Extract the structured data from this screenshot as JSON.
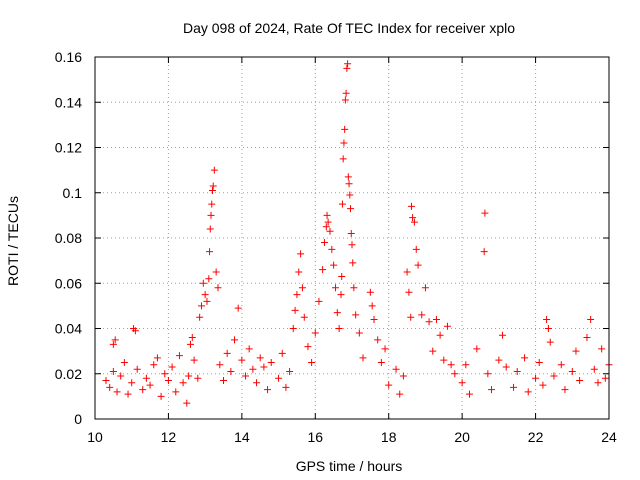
{
  "chart_data": {
    "type": "scatter",
    "title": "Day 098 of 2024, Rate Of TEC Index for receiver xplo",
    "xlabel": "GPS time / hours",
    "ylabel": "ROTI / TECUs",
    "xlim": [
      10,
      24
    ],
    "ylim": [
      0,
      0.16
    ],
    "x_ticks": [
      10,
      12,
      14,
      16,
      18,
      20,
      22,
      24
    ],
    "y_ticks": [
      0,
      0.02,
      0.04,
      0.06,
      0.08,
      0.1,
      0.12,
      0.14,
      0.16
    ],
    "x_tick_labels": [
      "10",
      "12",
      "14",
      "16",
      "18",
      "20",
      "22",
      "24"
    ],
    "y_tick_labels": [
      "0",
      "0.02",
      "0.04",
      "0.06",
      "0.08",
      "0.1",
      "0.12",
      "0.14",
      "0.16"
    ],
    "grid": true,
    "marker": "+",
    "series": [
      {
        "name": "ROTI",
        "color": "#ff0000",
        "points": [
          [
            10.3,
            0.017
          ],
          [
            10.4,
            0.014
          ],
          [
            10.5,
            0.021
          ],
          [
            10.5,
            0.033
          ],
          [
            10.55,
            0.035
          ],
          [
            10.6,
            0.012
          ],
          [
            10.7,
            0.019
          ],
          [
            10.8,
            0.025
          ],
          [
            10.9,
            0.011
          ],
          [
            11.0,
            0.016
          ],
          [
            11.05,
            0.04
          ],
          [
            11.1,
            0.039
          ],
          [
            11.15,
            0.022
          ],
          [
            11.3,
            0.013
          ],
          [
            11.4,
            0.018
          ],
          [
            11.5,
            0.015
          ],
          [
            11.6,
            0.024
          ],
          [
            11.7,
            0.027
          ],
          [
            11.8,
            0.01
          ],
          [
            11.9,
            0.02
          ],
          [
            12.0,
            0.017
          ],
          [
            12.1,
            0.023
          ],
          [
            12.2,
            0.012
          ],
          [
            12.3,
            0.028
          ],
          [
            12.4,
            0.016
          ],
          [
            12.5,
            0.007
          ],
          [
            12.55,
            0.019
          ],
          [
            12.6,
            0.033
          ],
          [
            12.65,
            0.036
          ],
          [
            12.7,
            0.026
          ],
          [
            12.8,
            0.018
          ],
          [
            12.85,
            0.045
          ],
          [
            12.9,
            0.05
          ],
          [
            12.95,
            0.06
          ],
          [
            13.0,
            0.055
          ],
          [
            13.05,
            0.052
          ],
          [
            13.1,
            0.062
          ],
          [
            13.12,
            0.074
          ],
          [
            13.14,
            0.084
          ],
          [
            13.16,
            0.09
          ],
          [
            13.18,
            0.095
          ],
          [
            13.2,
            0.101
          ],
          [
            13.22,
            0.103
          ],
          [
            13.25,
            0.11
          ],
          [
            13.3,
            0.065
          ],
          [
            13.35,
            0.058
          ],
          [
            13.4,
            0.024
          ],
          [
            13.5,
            0.017
          ],
          [
            13.6,
            0.029
          ],
          [
            13.7,
            0.021
          ],
          [
            13.8,
            0.035
          ],
          [
            13.9,
            0.049
          ],
          [
            14.0,
            0.026
          ],
          [
            14.1,
            0.019
          ],
          [
            14.2,
            0.031
          ],
          [
            14.3,
            0.022
          ],
          [
            14.4,
            0.016
          ],
          [
            14.5,
            0.027
          ],
          [
            14.6,
            0.023
          ],
          [
            14.7,
            0.013
          ],
          [
            14.8,
            0.025
          ],
          [
            15.0,
            0.018
          ],
          [
            15.1,
            0.029
          ],
          [
            15.2,
            0.014
          ],
          [
            15.3,
            0.021
          ],
          [
            15.4,
            0.04
          ],
          [
            15.45,
            0.048
          ],
          [
            15.5,
            0.055
          ],
          [
            15.55,
            0.065
          ],
          [
            15.6,
            0.073
          ],
          [
            15.65,
            0.058
          ],
          [
            15.7,
            0.045
          ],
          [
            15.8,
            0.032
          ],
          [
            15.9,
            0.025
          ],
          [
            16.0,
            0.038
          ],
          [
            16.1,
            0.052
          ],
          [
            16.2,
            0.066
          ],
          [
            16.25,
            0.078
          ],
          [
            16.3,
            0.085
          ],
          [
            16.32,
            0.09
          ],
          [
            16.35,
            0.087
          ],
          [
            16.4,
            0.083
          ],
          [
            16.45,
            0.075
          ],
          [
            16.5,
            0.068
          ],
          [
            16.55,
            0.058
          ],
          [
            16.6,
            0.047
          ],
          [
            16.65,
            0.04
          ],
          [
            16.7,
            0.055
          ],
          [
            16.72,
            0.063
          ],
          [
            16.74,
            0.095
          ],
          [
            16.76,
            0.115
          ],
          [
            16.78,
            0.122
          ],
          [
            16.8,
            0.128
          ],
          [
            16.82,
            0.141
          ],
          [
            16.84,
            0.144
          ],
          [
            16.86,
            0.155
          ],
          [
            16.88,
            0.157
          ],
          [
            16.9,
            0.107
          ],
          [
            16.92,
            0.104
          ],
          [
            16.94,
            0.099
          ],
          [
            16.96,
            0.093
          ],
          [
            16.98,
            0.082
          ],
          [
            17.0,
            0.077
          ],
          [
            17.02,
            0.069
          ],
          [
            17.05,
            0.058
          ],
          [
            17.1,
            0.046
          ],
          [
            17.2,
            0.038
          ],
          [
            17.3,
            0.027
          ],
          [
            17.5,
            0.056
          ],
          [
            17.55,
            0.05
          ],
          [
            17.6,
            0.044
          ],
          [
            17.7,
            0.035
          ],
          [
            17.8,
            0.025
          ],
          [
            17.9,
            0.031
          ],
          [
            18.0,
            0.015
          ],
          [
            18.2,
            0.022
          ],
          [
            18.3,
            0.011
          ],
          [
            18.4,
            0.019
          ],
          [
            18.5,
            0.065
          ],
          [
            18.55,
            0.056
          ],
          [
            18.6,
            0.045
          ],
          [
            18.62,
            0.094
          ],
          [
            18.65,
            0.089
          ],
          [
            18.7,
            0.087
          ],
          [
            18.75,
            0.075
          ],
          [
            18.8,
            0.068
          ],
          [
            18.9,
            0.046
          ],
          [
            19.0,
            0.058
          ],
          [
            19.1,
            0.043
          ],
          [
            19.2,
            0.03
          ],
          [
            19.3,
            0.044
          ],
          [
            19.4,
            0.037
          ],
          [
            19.5,
            0.026
          ],
          [
            19.6,
            0.041
          ],
          [
            19.7,
            0.024
          ],
          [
            19.8,
            0.02
          ],
          [
            20.0,
            0.016
          ],
          [
            20.1,
            0.024
          ],
          [
            20.2,
            0.011
          ],
          [
            20.4,
            0.031
          ],
          [
            20.6,
            0.074
          ],
          [
            20.62,
            0.091
          ],
          [
            20.7,
            0.02
          ],
          [
            20.8,
            0.013
          ],
          [
            21.0,
            0.026
          ],
          [
            21.1,
            0.037
          ],
          [
            21.2,
            0.023
          ],
          [
            21.4,
            0.014
          ],
          [
            21.5,
            0.021
          ],
          [
            21.7,
            0.027
          ],
          [
            21.8,
            0.012
          ],
          [
            22.0,
            0.018
          ],
          [
            22.1,
            0.025
          ],
          [
            22.2,
            0.015
          ],
          [
            22.3,
            0.044
          ],
          [
            22.35,
            0.04
          ],
          [
            22.4,
            0.034
          ],
          [
            22.5,
            0.019
          ],
          [
            22.7,
            0.024
          ],
          [
            22.8,
            0.013
          ],
          [
            23.0,
            0.021
          ],
          [
            23.1,
            0.03
          ],
          [
            23.2,
            0.017
          ],
          [
            23.4,
            0.036
          ],
          [
            23.5,
            0.044
          ],
          [
            23.6,
            0.022
          ],
          [
            23.7,
            0.016
          ],
          [
            23.8,
            0.031
          ],
          [
            23.9,
            0.018
          ],
          [
            24.0,
            0.024
          ]
        ]
      }
    ]
  }
}
